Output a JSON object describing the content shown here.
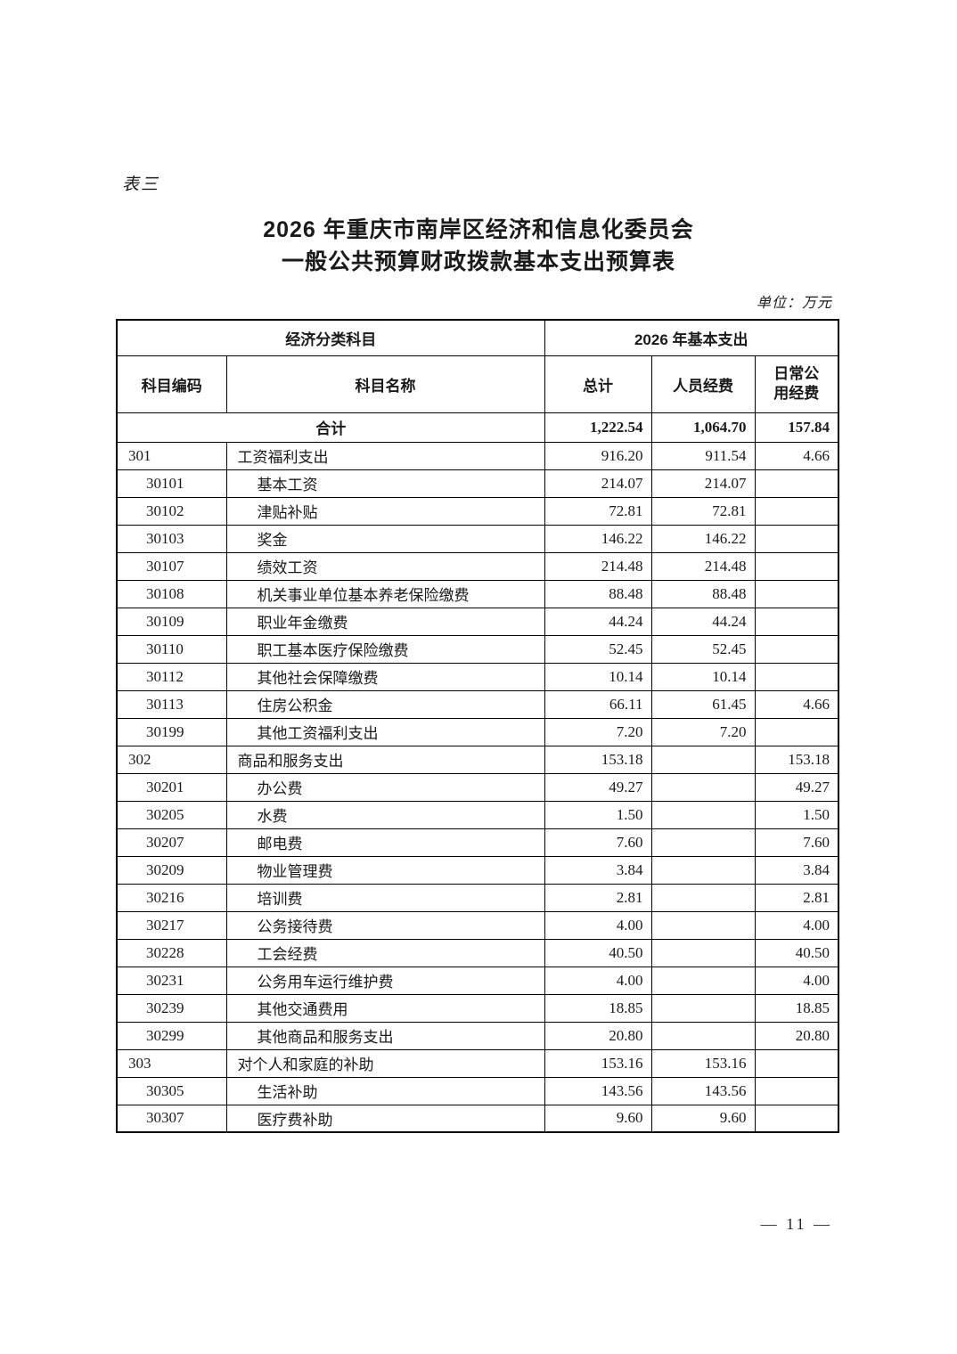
{
  "page": {
    "table_label": "表三",
    "title_line1": "2026 年重庆市南岸区经济和信息化委员会",
    "title_line2": "一般公共预算财政拨款基本支出预算表",
    "unit_note": "单位：万元",
    "page_number": "— 11 —"
  },
  "table": {
    "header": {
      "group_left": "经济分类科目",
      "group_right": "2026 年基本支出",
      "col_code": "科目编码",
      "col_name": "科目名称",
      "col_total": "总计",
      "col_personnel": "人员经费",
      "col_daily_line1": "日常公",
      "col_daily_line2": "用经费"
    },
    "total_row": {
      "label": "合计",
      "total": "1,222.54",
      "personnel": "1,064.70",
      "daily": "157.84"
    },
    "rows": [
      {
        "code": "301",
        "name": "工资福利支出",
        "total": "916.20",
        "personnel": "911.54",
        "daily": "4.66",
        "level": 1
      },
      {
        "code": "30101",
        "name": "基本工资",
        "total": "214.07",
        "personnel": "214.07",
        "daily": "",
        "level": 2
      },
      {
        "code": "30102",
        "name": "津贴补贴",
        "total": "72.81",
        "personnel": "72.81",
        "daily": "",
        "level": 2
      },
      {
        "code": "30103",
        "name": "奖金",
        "total": "146.22",
        "personnel": "146.22",
        "daily": "",
        "level": 2
      },
      {
        "code": "30107",
        "name": "绩效工资",
        "total": "214.48",
        "personnel": "214.48",
        "daily": "",
        "level": 2
      },
      {
        "code": "30108",
        "name": "机关事业单位基本养老保险缴费",
        "total": "88.48",
        "personnel": "88.48",
        "daily": "",
        "level": 2
      },
      {
        "code": "30109",
        "name": "职业年金缴费",
        "total": "44.24",
        "personnel": "44.24",
        "daily": "",
        "level": 2
      },
      {
        "code": "30110",
        "name": "职工基本医疗保险缴费",
        "total": "52.45",
        "personnel": "52.45",
        "daily": "",
        "level": 2
      },
      {
        "code": "30112",
        "name": "其他社会保障缴费",
        "total": "10.14",
        "personnel": "10.14",
        "daily": "",
        "level": 2
      },
      {
        "code": "30113",
        "name": "住房公积金",
        "total": "66.11",
        "personnel": "61.45",
        "daily": "4.66",
        "level": 2
      },
      {
        "code": "30199",
        "name": "其他工资福利支出",
        "total": "7.20",
        "personnel": "7.20",
        "daily": "",
        "level": 2
      },
      {
        "code": "302",
        "name": "商品和服务支出",
        "total": "153.18",
        "personnel": "",
        "daily": "153.18",
        "level": 1
      },
      {
        "code": "30201",
        "name": "办公费",
        "total": "49.27",
        "personnel": "",
        "daily": "49.27",
        "level": 2
      },
      {
        "code": "30205",
        "name": "水费",
        "total": "1.50",
        "personnel": "",
        "daily": "1.50",
        "level": 2
      },
      {
        "code": "30207",
        "name": "邮电费",
        "total": "7.60",
        "personnel": "",
        "daily": "7.60",
        "level": 2
      },
      {
        "code": "30209",
        "name": "物业管理费",
        "total": "3.84",
        "personnel": "",
        "daily": "3.84",
        "level": 2
      },
      {
        "code": "30216",
        "name": "培训费",
        "total": "2.81",
        "personnel": "",
        "daily": "2.81",
        "level": 2
      },
      {
        "code": "30217",
        "name": "公务接待费",
        "total": "4.00",
        "personnel": "",
        "daily": "4.00",
        "level": 2
      },
      {
        "code": "30228",
        "name": "工会经费",
        "total": "40.50",
        "personnel": "",
        "daily": "40.50",
        "level": 2
      },
      {
        "code": "30231",
        "name": "公务用车运行维护费",
        "total": "4.00",
        "personnel": "",
        "daily": "4.00",
        "level": 2
      },
      {
        "code": "30239",
        "name": "其他交通费用",
        "total": "18.85",
        "personnel": "",
        "daily": "18.85",
        "level": 2
      },
      {
        "code": "30299",
        "name": "其他商品和服务支出",
        "total": "20.80",
        "personnel": "",
        "daily": "20.80",
        "level": 2
      },
      {
        "code": "303",
        "name": "对个人和家庭的补助",
        "total": "153.16",
        "personnel": "153.16",
        "daily": "",
        "level": 1
      },
      {
        "code": "30305",
        "name": "生活补助",
        "total": "143.56",
        "personnel": "143.56",
        "daily": "",
        "level": 2
      },
      {
        "code": "30307",
        "name": "医疗费补助",
        "total": "9.60",
        "personnel": "9.60",
        "daily": "",
        "level": 2
      }
    ]
  }
}
